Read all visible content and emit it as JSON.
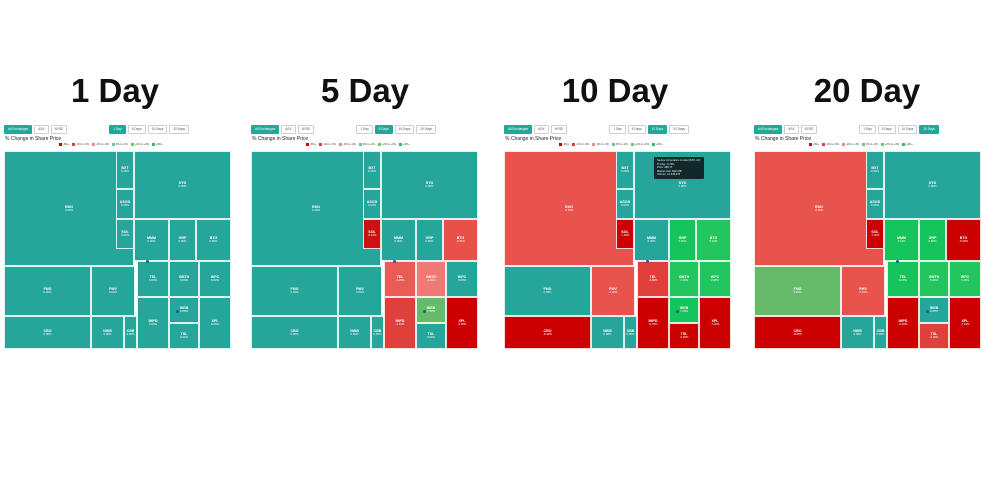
{
  "panels": [
    {
      "heading": "1 Day",
      "toolbar": {
        "left": [
          "All Exchanges",
          "ASX",
          "NYSE"
        ],
        "right": [
          "1 Day",
          "5 Days",
          "10 Days",
          "20 Days"
        ],
        "active_right": 0
      },
      "chart_title": "% Change in Share Price",
      "legend": [
        {
          "label": "-6%+",
          "color": "#cc0000"
        },
        {
          "label": "-4% to -6%",
          "color": "#e0403b"
        },
        {
          "label": "-2% to -4%",
          "color": "#f08b86"
        },
        {
          "label": "0% to -2%",
          "color": "#69c1b2"
        },
        {
          "label": "+2% to +4%",
          "color": "#66cc66"
        },
        {
          "label": "+6%+",
          "color": "#22c55e"
        }
      ],
      "tiles": [
        {
          "ticker": "BKN",
          "pct": "0.00%",
          "color": "#26a69a"
        },
        {
          "ticker": "SYD",
          "pct": "0.00%",
          "color": "#26a69a"
        },
        {
          "ticker": "BXT",
          "pct": "0.00%",
          "color": "#26a69a"
        },
        {
          "ticker": "ASOD",
          "pct": "0.00%",
          "color": "#26a69a"
        },
        {
          "ticker": "SOL",
          "pct": "0.00%",
          "color": "#26a69a"
        },
        {
          "ticker": "MMM",
          "pct": "0.00%",
          "color": "#26a69a"
        },
        {
          "ticker": "GRP",
          "pct": "0.00%",
          "color": "#26a69a"
        },
        {
          "ticker": "BTG",
          "pct": "0.00%",
          "color": "#26a69a"
        },
        {
          "ticker": "FMG",
          "pct": "0.00%",
          "color": "#26a69a"
        },
        {
          "ticker": "PMV",
          "pct": "0.00%",
          "color": "#26a69a"
        },
        {
          "ticker": "CBO",
          "pct": "0.00%",
          "color": "#26a69a"
        },
        {
          "ticker": "NWB",
          "pct": "0.00%",
          "color": "#26a69a"
        },
        {
          "ticker": "CBB",
          "pct": "0.00%",
          "color": "#26a69a"
        },
        {
          "ticker": "TEL",
          "pct": "0.00%",
          "color": "#26a69a"
        },
        {
          "ticker": "GMTH",
          "pct": "0.00%",
          "color": "#26a69a"
        },
        {
          "ticker": "WPC",
          "pct": "0.00%",
          "color": "#26a69a"
        },
        {
          "ticker": "IMPD",
          "pct": "0.00%",
          "color": "#26a69a"
        },
        {
          "ticker": "WEB",
          "pct": "0.00%",
          "color": "#26a69a"
        },
        {
          "ticker": "TSL",
          "pct": "0.00%",
          "color": "#26a69a"
        },
        {
          "ticker": "XPL",
          "pct": "0.00%",
          "color": "#26a69a"
        }
      ]
    },
    {
      "heading": "5 Day",
      "toolbar": {
        "left": [
          "All Exchanges",
          "ASX",
          "NYSE"
        ],
        "right": [
          "1 Day",
          "5 Days",
          "10 Days",
          "20 Days"
        ],
        "active_right": 1
      },
      "chart_title": "% Change in Share Price",
      "legend": [
        {
          "label": "-6%+",
          "color": "#cc0000"
        },
        {
          "label": "-4% to -6%",
          "color": "#e0403b"
        },
        {
          "label": "-2% to -4%",
          "color": "#f08b86"
        },
        {
          "label": "0% to -2%",
          "color": "#69c1b2"
        },
        {
          "label": "+2% to +4%",
          "color": "#66cc66"
        },
        {
          "label": "+6%+",
          "color": "#22c55e"
        }
      ],
      "tiles": [
        {
          "ticker": "BKN",
          "pct": "0.00%",
          "color": "#26a69a"
        },
        {
          "ticker": "SYD",
          "pct": "0.00%",
          "color": "#26a69a"
        },
        {
          "ticker": "BXT",
          "pct": "0.00%",
          "color": "#26a69a"
        },
        {
          "ticker": "ASOD",
          "pct": "0.00%",
          "color": "#26a69a"
        },
        {
          "ticker": "SOL",
          "pct": "-6.12%",
          "color": "#cc1111"
        },
        {
          "ticker": "MMM",
          "pct": "0.00%",
          "color": "#26a69a"
        },
        {
          "ticker": "GRP",
          "pct": "0.00%",
          "color": "#26a69a"
        },
        {
          "ticker": "BTG",
          "pct": "-3.51%",
          "color": "#e8504a"
        },
        {
          "ticker": "FMG",
          "pct": "0.00%",
          "color": "#26a69a"
        },
        {
          "ticker": "PMV",
          "pct": "0.00%",
          "color": "#26a69a"
        },
        {
          "ticker": "CBO",
          "pct": "0.00%",
          "color": "#26a69a"
        },
        {
          "ticker": "NWB",
          "pct": "0.00%",
          "color": "#26a69a"
        },
        {
          "ticker": "CBB",
          "pct": "0.00%",
          "color": "#26a69a"
        },
        {
          "ticker": "TEL",
          "pct": "-3.20%",
          "color": "#ea5b55"
        },
        {
          "ticker": "GMTH",
          "pct": "-2.40%",
          "color": "#ef7a75"
        },
        {
          "ticker": "WPC",
          "pct": "0.00%",
          "color": "#26a69a"
        },
        {
          "ticker": "IMPD",
          "pct": "-4.10%",
          "color": "#e0403b"
        },
        {
          "ticker": "WEB",
          "pct": "2.30%",
          "color": "#66bb6a"
        },
        {
          "ticker": "TSL",
          "pct": "0.00%",
          "color": "#26a69a"
        },
        {
          "ticker": "XPL",
          "pct": "-6.50%",
          "color": "#cc0000"
        }
      ]
    },
    {
      "heading": "10 Day",
      "toolbar": {
        "left": [
          "All Exchanges",
          "ASX",
          "NYSE"
        ],
        "right": [
          "1 Day",
          "5 Days",
          "10 Days",
          "20 Days"
        ],
        "active_right": 2
      },
      "chart_title": "% Change in Share Price",
      "legend": [
        {
          "label": "-6%+",
          "color": "#cc0000"
        },
        {
          "label": "-4% to -6%",
          "color": "#e0403b"
        },
        {
          "label": "-2% to -4%",
          "color": "#f08b86"
        },
        {
          "label": "0% to -2%",
          "color": "#69c1b2"
        },
        {
          "label": "+2% to +4%",
          "color": "#66cc66"
        },
        {
          "label": "+6%+",
          "color": "#22c55e"
        }
      ],
      "tooltip": [
        "Santos Corporation Limited (STO.AX)",
        "% Chg: -0.74%",
        "Price: A$6.71",
        "Market Cap: A$21.8B",
        "Volume: 12,345,678"
      ],
      "tiles": [
        {
          "ticker": "BKN",
          "pct": "-5.20%",
          "color": "#e8534d"
        },
        {
          "ticker": "SYD",
          "pct": "0.00%",
          "color": "#26a69a"
        },
        {
          "ticker": "BXT",
          "pct": "0.00%",
          "color": "#26a69a"
        },
        {
          "ticker": "ASOD",
          "pct": "0.00%",
          "color": "#26a69a"
        },
        {
          "ticker": "SOL",
          "pct": "-7.02%",
          "color": "#cc0000"
        },
        {
          "ticker": "MMM",
          "pct": "0.00%",
          "color": "#26a69a"
        },
        {
          "ticker": "GRP",
          "pct": "6.40%",
          "color": "#16c45c"
        },
        {
          "ticker": "BTG",
          "pct": "5.10%",
          "color": "#22c55e"
        },
        {
          "ticker": "FMG",
          "pct": "0.00%",
          "color": "#26a69a"
        },
        {
          "ticker": "PMV",
          "pct": "-4.20%",
          "color": "#e8534d"
        },
        {
          "ticker": "CBO",
          "pct": "-8.30%",
          "color": "#cc0000"
        },
        {
          "ticker": "NWB",
          "pct": "0.00%",
          "color": "#26a69a"
        },
        {
          "ticker": "CBB",
          "pct": "0.00%",
          "color": "#26a69a"
        },
        {
          "ticker": "TEL",
          "pct": "-4.80%",
          "color": "#e0403b"
        },
        {
          "ticker": "GMTH",
          "pct": "4.10%",
          "color": "#22c55e"
        },
        {
          "ticker": "WPC",
          "pct": "3.90%",
          "color": "#22c55e"
        },
        {
          "ticker": "IMPD",
          "pct": "-6.70%",
          "color": "#cc0000"
        },
        {
          "ticker": "WEB",
          "pct": "7.20%",
          "color": "#16c45c"
        },
        {
          "ticker": "TSL",
          "pct": "-6.90%",
          "color": "#cc0000"
        },
        {
          "ticker": "XPL",
          "pct": "-7.40%",
          "color": "#cc0000"
        }
      ]
    },
    {
      "heading": "20 Day",
      "toolbar": {
        "left": [
          "All Exchanges",
          "ASX",
          "NYSE"
        ],
        "right": [
          "1 Day",
          "5 Days",
          "10 Days",
          "20 Days"
        ],
        "active_right": 3
      },
      "chart_title": "% Change in Share Price",
      "legend": [
        {
          "label": "-6%+",
          "color": "#cc0000"
        },
        {
          "label": "-4% to -6%",
          "color": "#e0403b"
        },
        {
          "label": "-2% to -4%",
          "color": "#f08b86"
        },
        {
          "label": "0% to -2%",
          "color": "#69c1b2"
        },
        {
          "label": "+2% to +4%",
          "color": "#66cc66"
        },
        {
          "label": "+6%+",
          "color": "#22c55e"
        }
      ],
      "tiles": [
        {
          "ticker": "BKN",
          "pct": "-5.60%",
          "color": "#e8534d"
        },
        {
          "ticker": "SYD",
          "pct": "0.00%",
          "color": "#26a69a"
        },
        {
          "ticker": "BXT",
          "pct": "0.00%",
          "color": "#26a69a"
        },
        {
          "ticker": "ASOD",
          "pct": "0.00%",
          "color": "#26a69a"
        },
        {
          "ticker": "SOL",
          "pct": "-7.40%",
          "color": "#cc0000"
        },
        {
          "ticker": "MMM",
          "pct": "7.10%",
          "color": "#16c45c"
        },
        {
          "ticker": "GRP",
          "pct": "6.80%",
          "color": "#16c45c"
        },
        {
          "ticker": "BTG",
          "pct": "-6.90%",
          "color": "#cc0000"
        },
        {
          "ticker": "FMG",
          "pct": "3.20%",
          "color": "#66bb6a"
        },
        {
          "ticker": "PMV",
          "pct": "-5.10%",
          "color": "#e8534d"
        },
        {
          "ticker": "CBO",
          "pct": "-8.80%",
          "color": "#cc0000"
        },
        {
          "ticker": "NWB",
          "pct": "0.00%",
          "color": "#26a69a"
        },
        {
          "ticker": "CBB",
          "pct": "0.00%",
          "color": "#26a69a"
        },
        {
          "ticker": "TEL",
          "pct": "6.20%",
          "color": "#16c45c"
        },
        {
          "ticker": "GMTH",
          "pct": "5.30%",
          "color": "#22c55e"
        },
        {
          "ticker": "WPC",
          "pct": "4.40%",
          "color": "#22c55e"
        },
        {
          "ticker": "IMPD",
          "pct": "-6.20%",
          "color": "#cc0000"
        },
        {
          "ticker": "WEB",
          "pct": "0.00%",
          "color": "#26a69a"
        },
        {
          "ticker": "TSL",
          "pct": "-4.40%",
          "color": "#e0403b"
        },
        {
          "ticker": "XPL",
          "pct": "-7.10%",
          "color": "#cc0000"
        }
      ]
    }
  ]
}
